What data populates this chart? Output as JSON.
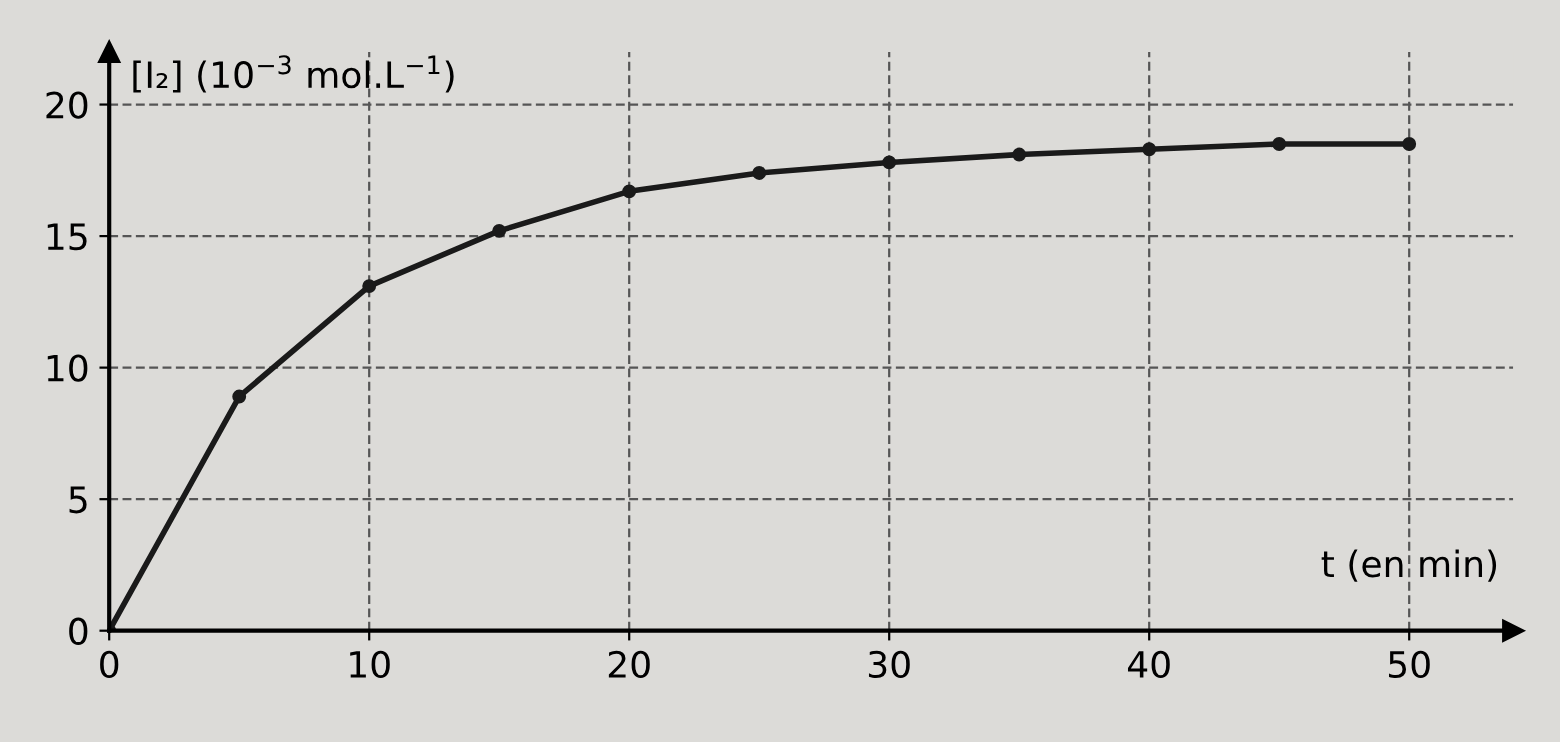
{
  "chart_data": {
    "type": "line",
    "ylabel": "[I₂] (10$^{−3}$ mol.L$^{−1}$)",
    "xlabel": "t (en min)",
    "x": [
      0,
      5,
      10,
      15,
      20,
      25,
      30,
      35,
      40,
      45,
      50
    ],
    "series": [
      {
        "color": "#1a1a1a",
        "values": [
          0,
          8.9,
          13.1,
          15.2,
          16.7,
          17.4,
          17.8,
          18.1,
          18.3,
          18.5,
          18.5
        ]
      }
    ],
    "xlim": [
      0,
      54
    ],
    "ylim": [
      0,
      22
    ],
    "xticks": [
      0,
      10,
      20,
      30,
      40,
      50
    ],
    "yticks": [
      0,
      5,
      10,
      15,
      20
    ],
    "grid": true,
    "marker": "circle",
    "line_style": "solid",
    "legend": false
  }
}
